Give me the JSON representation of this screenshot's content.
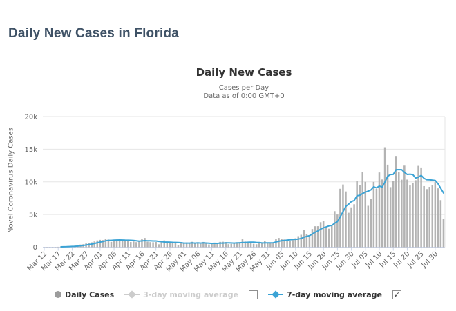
{
  "page": {
    "heading": "Daily New Cases in Florida"
  },
  "chart": {
    "title": "Daily New Cases",
    "subtitle_line1": "Cases per Day",
    "subtitle_line2": "Data as of 0:00 GMT+0",
    "y_axis_title": "Novel Coronavirus Daily Cases",
    "legend": {
      "daily_cases_label": "Daily Cases",
      "ma3_label": "3-day moving average",
      "ma7_label": "7-day moving average",
      "ma3_checkbox_checked": false,
      "ma7_checkbox_checked": true,
      "check_glyph": "✓"
    },
    "colors": {
      "heading": "#3f5266",
      "title_text": "#333333",
      "muted_text": "#666666",
      "disabled_text": "#cccccc",
      "bar_fill": "#b3b3b3",
      "ma7_line": "#3ba3d5",
      "gridline": "#e6e6e6",
      "axis_line": "#ccd6eb"
    }
  },
  "chart_data": {
    "type": "bar",
    "title": "Daily New Cases",
    "subtitle": "Cases per Day — Data as of 0:00 GMT+0",
    "xlabel": "",
    "ylabel": "Novel Coronavirus Daily Cases",
    "ylim": [
      0,
      20000
    ],
    "grid": true,
    "legend_position": "bottom",
    "date_range": "Mar 12 - Aug 2",
    "x_tick_step_days": 5,
    "x_tick_labels": [
      "Mar 12",
      "Mar 17",
      "Mar 22",
      "Mar 27",
      "Apr 01",
      "Apr 06",
      "Apr 11",
      "Apr 16",
      "Apr 21",
      "Apr 26",
      "May 01",
      "May 06",
      "May 11",
      "May 16",
      "May 21",
      "May 26",
      "May 31",
      "Jun 05",
      "Jun 10",
      "Jun 15",
      "Jun 20",
      "Jun 25",
      "Jun 30",
      "Jul 05",
      "Jul 10",
      "Jul 15",
      "Jul 20",
      "Jul 25",
      "Jul 30"
    ],
    "y_ticks": [
      {
        "value": 0,
        "label": "0"
      },
      {
        "value": 5000,
        "label": "5k"
      },
      {
        "value": 10000,
        "label": "10k"
      },
      {
        "value": 15000,
        "label": "15k"
      },
      {
        "value": 20000,
        "label": "20k"
      }
    ],
    "series": [
      {
        "name": "Daily Cases",
        "type": "bar",
        "visible": true,
        "values": [
          25,
          40,
          35,
          50,
          45,
          60,
          90,
          110,
          125,
          165,
          210,
          235,
          280,
          400,
          455,
          565,
          665,
          740,
          870,
          1035,
          1120,
          1090,
          1260,
          1165,
          810,
          1045,
          1180,
          1210,
          1015,
          1135,
          1040,
          785,
          880,
          770,
          905,
          1220,
          1415,
          825,
          770,
          745,
          790,
          440,
          935,
          1040,
          750,
          605,
          610,
          710,
          350,
          705,
          625,
          720,
          615,
          820,
          540,
          565,
          505,
          800,
          590,
          415,
          610,
          660,
          480,
          810,
          830,
          775,
          455,
          500,
          530,
          730,
          775,
          1210,
          860,
          615,
          650,
          510,
          450,
          680,
          720,
          925,
          665,
          670,
          615,
          1315,
          1415,
          1305,
          1180,
          1100,
          965,
          1090,
          1370,
          1690,
          1900,
          2590,
          2010,
          1755,
          2780,
          3200,
          3210,
          3820,
          4045,
          2930,
          2830,
          3280,
          5510,
          5000,
          8940,
          9590,
          8530,
          5265,
          6095,
          6565,
          10110,
          9490,
          11460,
          10000,
          6335,
          7350,
          9990,
          8935,
          11435,
          10360,
          15300,
          12625,
          9195,
          10180,
          13965,
          11465,
          10330,
          12480,
          10345,
          9440,
          9785,
          10250,
          12445,
          12200,
          9345,
          8890,
          9230,
          9445,
          9955,
          9005,
          7200,
          4300
        ]
      },
      {
        "name": "3-day moving average",
        "type": "line",
        "visible": false
      },
      {
        "name": "7-day moving average",
        "type": "line",
        "visible": true,
        "derived": "trailing 7-day mean of Daily Cases"
      }
    ]
  }
}
